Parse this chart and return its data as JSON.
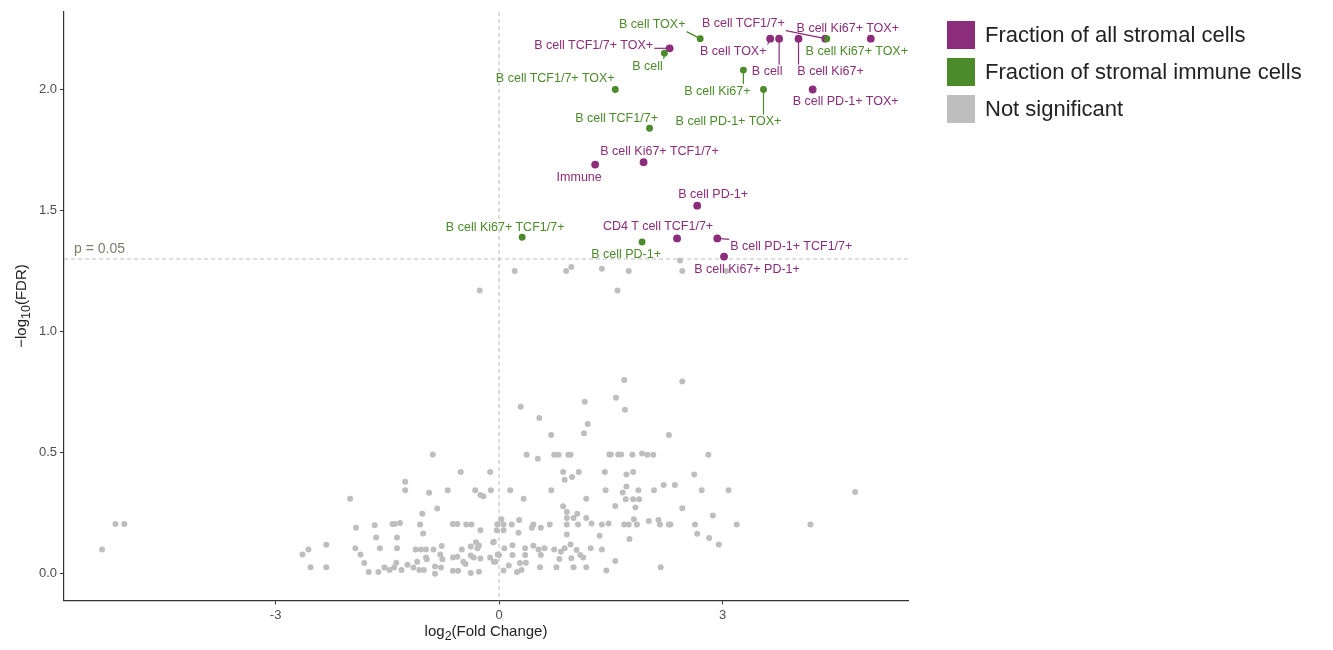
{
  "chart_data": {
    "type": "scatter",
    "xlabel": "log$_{2}$(Fold Change)",
    "ylabel": "−log$_{10}$(FDR)",
    "xlim": [
      -5.84,
      5.49
    ],
    "ylim": [
      -0.11,
      2.32
    ],
    "xticks": [
      -3,
      0,
      3
    ],
    "yticks": [
      {
        "value": 0,
        "label": "0.0"
      },
      {
        "value": 0.5,
        "label": "0.5"
      },
      {
        "value": 1,
        "label": "1.0"
      },
      {
        "value": 1.5,
        "label": "1.5"
      },
      {
        "value": 2,
        "label": "2.0"
      }
    ],
    "grid": false,
    "legend": "top right",
    "marker": "circle",
    "ref_lines": [
      {
        "axis": "y",
        "value": 1.3,
        "color": "#bbbbbb",
        "line_style": "dashed"
      },
      {
        "axis": "x",
        "value": 0,
        "color": "#bbbbbb",
        "line_style": "dashed"
      }
    ],
    "series": [
      {
        "name": "Fraction of all stromal cells",
        "color": "#8b2d7a",
        "x": [
          2.29,
          3.64,
          3.76,
          4.38,
          4.02,
          4.99,
          4.21,
          1.29,
          1.94,
          2.66,
          2.39,
          2.93,
          3.02
        ],
        "values": [
          2.17,
          2.21,
          2.21,
          2.21,
          2.21,
          2.21,
          2.0,
          1.69,
          1.7,
          1.52,
          1.385,
          1.385,
          1.31
        ]
      },
      {
        "name": "Fraction of stromal immune cells",
        "color": "#4b8b2b",
        "x": [
          2.7,
          2.22,
          1.56,
          3.28,
          3.55,
          4.4,
          2.02,
          0.31,
          1.92
        ],
        "values": [
          2.21,
          2.15,
          2.0,
          2.08,
          2.0,
          2.21,
          1.84,
          1.39,
          1.37
        ]
      },
      {
        "name": "Not significant",
        "color": "#bebebe",
        "x": [
          -5.33,
          -5.15,
          -5.03,
          -2.64,
          -2.56,
          -2.53,
          -2.32,
          -2.32,
          -2.0,
          -1.92,
          -1.93,
          -1.86,
          -1.81,
          -1.75,
          -1.67,
          -1.65,
          -1.6,
          -1.62,
          -1.54,
          -1.47,
          -1.43,
          -1.4,
          -1.33,
          -1.37,
          -1.37,
          -1.38,
          -1.41,
          -1.31,
          -1.26,
          -1.26,
          -1.23,
          -1.15,
          -1.12,
          -1.1,
          -1.07,
          -1.06,
          -1.03,
          -1.02,
          -1.05,
          -1.01,
          -0.98,
          -0.98,
          -0.97,
          -0.89,
          -0.94,
          -0.83,
          -0.88,
          -0.86,
          -0.86,
          -0.77,
          -0.79,
          -0.76,
          -0.78,
          -0.69,
          -0.62,
          -0.56,
          -0.62,
          -0.56,
          -0.62,
          -0.55,
          -0.515,
          -0.5,
          -0.48,
          -0.45,
          -0.44,
          -0.37,
          -0.38,
          -0.38,
          -0.38,
          -0.34,
          -0.32,
          -0.31,
          -0.29,
          -0.25,
          -0.21,
          -0.25,
          -0.27,
          -0.25,
          -0.27,
          -0.26,
          -0.12,
          -0.11,
          -0.08,
          -0.12,
          -0.07,
          -0.03,
          -0.02,
          -0.02,
          0.03,
          -0.02,
          0.06,
          0.06,
          -0.07,
          0.0,
          -0.05,
          0.06,
          0.07,
          0.13,
          0.15,
          0.17,
          0.18,
          0.18,
          0.24,
          0.27,
          0.26,
          0.28,
          0.3,
          0.29,
          0.33,
          0.37,
          0.35,
          0.35,
          0.36,
          0.44,
          0.46,
          0.46,
          0.52,
          0.54,
          0.53,
          0.55,
          0.56,
          0.56,
          0.61,
          0.68,
          0.7,
          0.7,
          0.74,
          0.8,
          0.74,
          0.77,
          0.81,
          0.83,
          0.86,
          0.86,
          0.88,
          0.91,
          0.91,
          0.91,
          0.91,
          0.88,
          0.93,
          0.96,
          0.96,
          0.98,
          0.97,
          1.0,
          1.0,
          1.04,
          1.05,
          1.06,
          1.07,
          1.09,
          1.14,
          1.15,
          1.13,
          1.17,
          1.17,
          1.17,
          1.19,
          1.23,
          1.24,
          1.35,
          1.38,
          1.38,
          1.42,
          1.43,
          1.44,
          1.47,
          1.48,
          1.5,
          1.56,
          1.56,
          1.57,
          1.6,
          1.64,
          1.66,
          1.68,
          1.69,
          1.68,
          1.71,
          1.71,
          1.7,
          1.75,
          1.74,
          1.79,
          1.8,
          1.8,
          1.81,
          1.83,
          1.85,
          1.87,
          1.88,
          1.92,
          1.99,
          2.07,
          2.01,
          2.08,
          2.14,
          2.16,
          2.17,
          2.21,
          2.28,
          2.28,
          2.3,
          2.36,
          2.46,
          2.46,
          2.62,
          2.63,
          2.66,
          2.72,
          2.81,
          2.82,
          2.87,
          2.95,
          3.08,
          3.19,
          4.18,
          4.78,
          0.21,
          0.9,
          0.97,
          1.38,
          1.74,
          2.43,
          2.46,
          3.05,
          1.59
        ],
        "values": [
          0.1,
          0.206,
          0.206,
          0.08,
          0.1,
          0.027,
          0.12,
          0.027,
          0.31,
          0.19,
          0.105,
          0.08,
          0.044,
          0.007,
          0.2,
          0.15,
          0.105,
          0.007,
          0.026,
          0.016,
          0.206,
          0.206,
          0.21,
          0.15,
          0.105,
          0.046,
          0.026,
          0.016,
          0.345,
          0.38,
          0.037,
          0.026,
          0.1,
          0.05,
          0.016,
          0.203,
          0.248,
          0.166,
          0.1,
          0.016,
          0.1,
          0.067,
          0.06,
          0.493,
          0.335,
          0.27,
          0.1,
          0.03,
          0.0,
          0.115,
          0.08,
          0.06,
          0.026,
          0.345,
          0.206,
          0.206,
          0.067,
          0.07,
          0.012,
          0.012,
          0.42,
          0.1,
          0.05,
          0.04,
          0.203,
          0.203,
          0.113,
          0.003,
          0.075,
          0.067,
          0.345,
          0.13,
          0.105,
          0.325,
          0.32,
          0.18,
          0.117,
          0.063,
          0.008,
          1.17,
          0.42,
          0.345,
          0.13,
          0.067,
          0.05,
          0.18,
          0.205,
          0.08,
          0.225,
          0.203,
          0.203,
          0.18,
          0.132,
          0.078,
          0.05,
          0.013,
          0.105,
          0.034,
          0.345,
          0.203,
          0.118,
          0.078,
          0.007,
          0.222,
          0.169,
          0.044,
          0.016,
          0.69,
          0.31,
          0.492,
          0.105,
          0.078,
          0.046,
          0.19,
          0.203,
          0.116,
          0.475,
          0.643,
          0.1,
          0.027,
          0.078,
          0.19,
          0.105,
          0.203,
          0.573,
          0.345,
          0.492,
          0.492,
          0.1,
          0.027,
          0.061,
          0.091,
          0.279,
          0.42,
          0.388,
          0.255,
          0.23,
          0.203,
          0.162,
          0.105,
          0.492,
          0.492,
          0.121,
          0.4,
          0.064,
          0.23,
          0.027,
          0.098,
          0.248,
          0.203,
          0.42,
          0.078,
          0.58,
          0.71,
          0.067,
          0.31,
          0.23,
          0.027,
          0.618,
          0.105,
          0.208,
          0.157,
          0.203,
          0.1,
          0.42,
          0.345,
          0.013,
          0.208,
          0.493,
          0.493,
          0.28,
          0.053,
          0.727,
          0.493,
          0.493,
          0.336,
          0.8,
          0.677,
          0.203,
          0.41,
          0.36,
          0.308,
          0.144,
          0.203,
          0.492,
          0.42,
          0.308,
          0.225,
          0.274,
          0.203,
          0.345,
          0.308,
          0.497,
          0.492,
          0.492,
          0.218,
          0.345,
          0.222,
          0.203,
          0.027,
          0.367,
          0.573,
          0.203,
          0.203,
          0.367,
          0.794,
          0.271,
          0.41,
          0.203,
          0.165,
          0.345,
          0.492,
          0.148,
          0.241,
          0.121,
          0.345,
          0.203,
          0.203,
          0.338,
          1.25,
          1.25,
          1.267,
          1.26,
          1.25,
          1.294,
          1.25,
          1.25,
          1.17
        ]
      }
    ],
    "annotations": [
      "p = 0.05",
      {
        "text": "B cell TCF1/7+ TOX+",
        "x": 2.29,
        "y": 2.17
      },
      {
        "text": "B cell TOX+",
        "x": 3.64,
        "y": 2.21
      },
      {
        "text": "B cell",
        "x": 3.76,
        "y": 2.21
      },
      {
        "text": "B cell TCF1/7+",
        "x": 4.38,
        "y": 2.21
      },
      {
        "text": "B cell Ki67+",
        "x": 4.02,
        "y": 2.21
      },
      {
        "text": "B cell Ki67+ TOX+",
        "x": 4.99,
        "y": 2.21
      },
      {
        "text": "B cell PD-1+ TOX+",
        "x": 4.21,
        "y": 2.0
      },
      {
        "text": "Immune",
        "x": 1.29,
        "y": 1.69
      },
      {
        "text": "B cell Ki67+ TCF1/7+",
        "x": 1.94,
        "y": 1.7
      },
      {
        "text": "B cell PD-1+",
        "x": 2.66,
        "y": 1.52
      },
      {
        "text": "CD4 T cell TCF1/7+",
        "x": 2.39,
        "y": 1.385
      },
      {
        "text": "B cell PD-1+ TCF1/7+",
        "x": 2.93,
        "y": 1.385
      },
      {
        "text": "B cell Ki67+ PD-1+",
        "x": 3.02,
        "y": 1.31
      },
      {
        "text": "B cell TOX+",
        "x": 2.7,
        "y": 2.21
      },
      {
        "text": "B cell",
        "x": 2.22,
        "y": 2.15
      },
      {
        "text": "B cell TCF1/7+ TOX+",
        "x": 1.56,
        "y": 2.0
      },
      {
        "text": "B cell Ki67+",
        "x": 3.28,
        "y": 2.08
      },
      {
        "text": "B cell PD-1+ TOX+",
        "x": 3.55,
        "y": 2.0
      },
      {
        "text": "B cell Ki67+ TOX+",
        "x": 4.4,
        "y": 2.21
      },
      {
        "text": "B cell TCF1/7+",
        "x": 2.02,
        "y": 1.84
      },
      {
        "text": "B cell Ki67+ TCF1/7+",
        "x": 0.31,
        "y": 1.39
      },
      {
        "text": "B cell PD-1+",
        "x": 1.92,
        "y": 1.37
      }
    ]
  }
}
